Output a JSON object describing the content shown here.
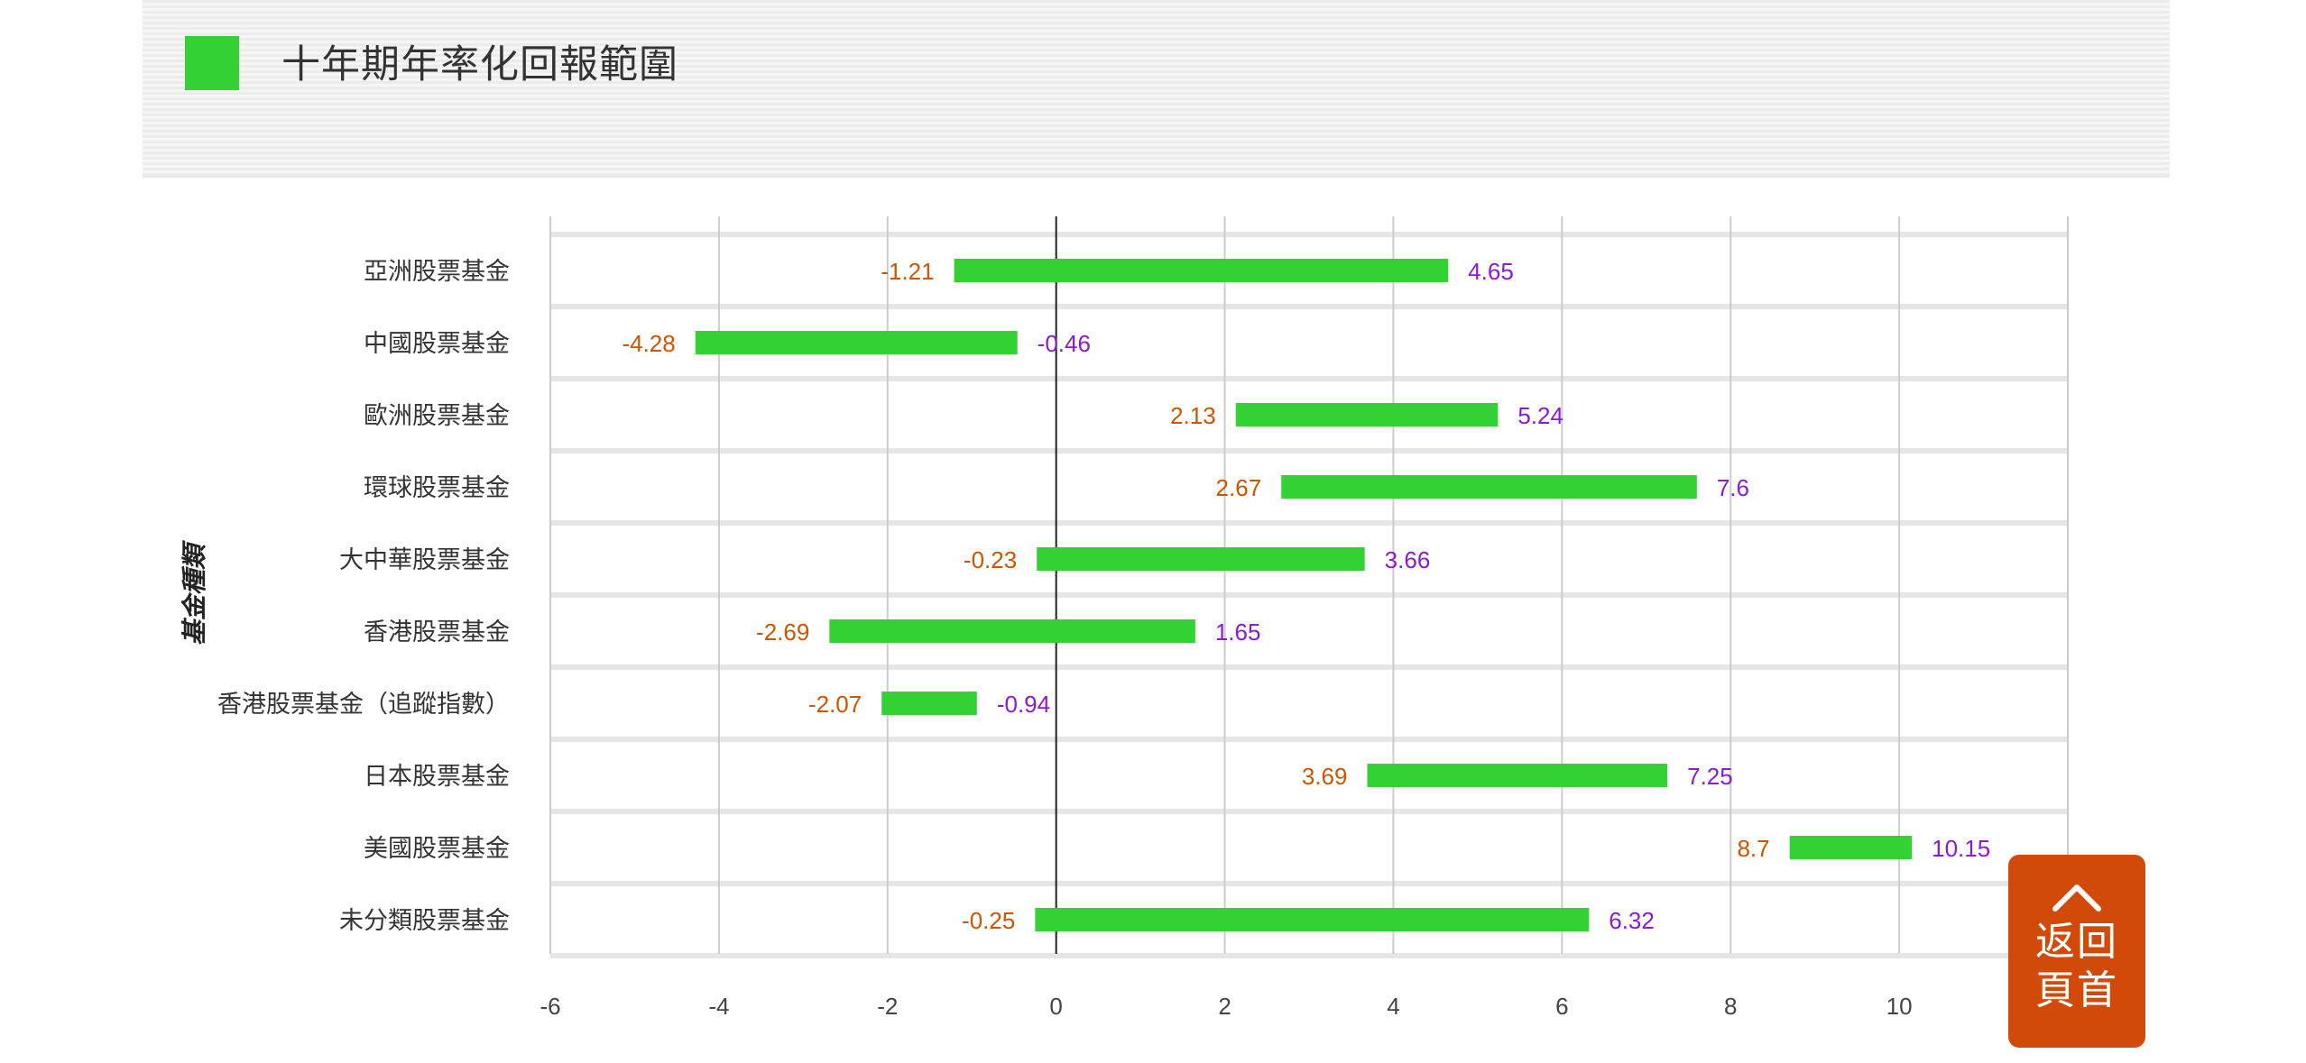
{
  "header": {
    "title": "十年期年率化回報範圍",
    "legend_color": "#33d133"
  },
  "back_to_top": {
    "label": "返回\n頁首",
    "color": "#d24a09"
  },
  "colors": {
    "bar": "#33d133",
    "low_label": "#cc5500",
    "high_label": "#8a1ccf",
    "grid": "#cccccc",
    "band": "#e6e6e6",
    "zero_line": "#222222"
  },
  "chart_data": {
    "type": "bar",
    "orientation": "horizontal-range",
    "title": "",
    "xlabel": "",
    "ylabel": "基金種類",
    "xlim": [
      -6,
      12
    ],
    "xticks": [
      -6,
      -4,
      -2,
      0,
      2,
      4,
      6,
      8,
      10
    ],
    "grid": true,
    "categories": [
      "亞洲股票基金",
      "中國股票基金",
      "歐洲股票基金",
      "環球股票基金",
      "大中華股票基金",
      "香港股票基金",
      "香港股票基金（追蹤指數）",
      "日本股票基金",
      "美國股票基金",
      "未分類股票基金"
    ],
    "series": [
      {
        "low": [
          -1.21,
          -4.28,
          2.13,
          2.67,
          -0.23,
          -2.69,
          -2.07,
          3.69,
          8.7,
          -0.25
        ],
        "high": [
          4.65,
          -0.46,
          5.24,
          7.6,
          3.66,
          1.65,
          -0.94,
          7.25,
          10.15,
          6.32
        ]
      }
    ],
    "low_labels": [
      "-1.21",
      "-4.28",
      "2.13",
      "2.67",
      "-0.23",
      "-2.69",
      "-2.07",
      "3.69",
      "8.7",
      "-0.25"
    ],
    "high_labels": [
      "4.65",
      "-0.46",
      "5.24",
      "7.6",
      "3.66",
      "1.65",
      "-0.94",
      "7.25",
      "10.15",
      "6.32"
    ],
    "tick_labels": [
      "-6",
      "-4",
      "-2",
      "0",
      "2",
      "4",
      "6",
      "8",
      "10"
    ]
  }
}
